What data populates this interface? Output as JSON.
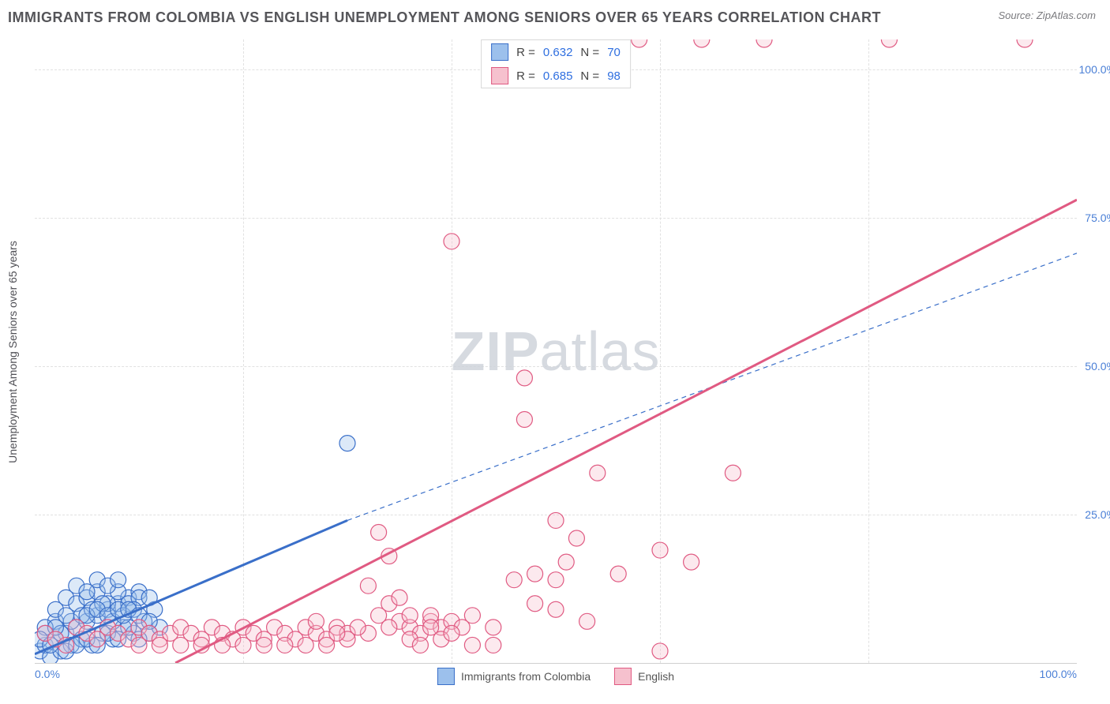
{
  "title": "IMMIGRANTS FROM COLOMBIA VS ENGLISH UNEMPLOYMENT AMONG SENIORS OVER 65 YEARS CORRELATION CHART",
  "source_label": "Source: ZipAtlas.com",
  "y_axis_label": "Unemployment Among Seniors over 65 years",
  "watermark": {
    "bold": "ZIP",
    "rest": "atlas"
  },
  "chart": {
    "type": "scatter",
    "xlim": [
      0,
      100
    ],
    "ylim": [
      0,
      105
    ],
    "x_ticks": [
      {
        "v": 0,
        "label": "0.0%"
      },
      {
        "v": 20,
        "label": ""
      },
      {
        "v": 40,
        "label": ""
      },
      {
        "v": 60,
        "label": ""
      },
      {
        "v": 80,
        "label": ""
      },
      {
        "v": 100,
        "label": "100.0%"
      }
    ],
    "y_ticks": [
      {
        "v": 25,
        "label": "25.0%"
      },
      {
        "v": 50,
        "label": "50.0%"
      },
      {
        "v": 75,
        "label": "75.0%"
      },
      {
        "v": 100,
        "label": "100.0%"
      }
    ],
    "hgrid_vals": [
      25,
      50,
      75,
      100
    ],
    "vgrid_vals": [
      20,
      40,
      60,
      80
    ],
    "grid_color": "#e1e1e1",
    "background_color": "#ffffff",
    "marker_radius": 10,
    "series": [
      {
        "name": "Immigrants from Colombia",
        "fill": "#9cc0ec",
        "stroke": "#3a6fc9",
        "R": "0.632",
        "N": "70",
        "reg_solid": {
          "x1": 0,
          "y1": 1.5,
          "x2": 30,
          "y2": 24
        },
        "reg_dash": {
          "x1": 30,
          "y1": 24,
          "x2": 100,
          "y2": 69
        },
        "points": [
          [
            0.5,
            2
          ],
          [
            1,
            3
          ],
          [
            1.5,
            1
          ],
          [
            2,
            4
          ],
          [
            2.5,
            2
          ],
          [
            3,
            5
          ],
          [
            3.5,
            3
          ],
          [
            4,
            6
          ],
          [
            4.5,
            4
          ],
          [
            5,
            7
          ],
          [
            5.5,
            3
          ],
          [
            6,
            8
          ],
          [
            6.5,
            5
          ],
          [
            7,
            9
          ],
          [
            7.5,
            4
          ],
          [
            8,
            10
          ],
          [
            8.5,
            6
          ],
          [
            9,
            11
          ],
          [
            9.5,
            5
          ],
          [
            10,
            12
          ],
          [
            10.5,
            7
          ],
          [
            11,
            5
          ],
          [
            11.5,
            9
          ],
          [
            12,
            6
          ],
          [
            1,
            5
          ],
          [
            2,
            7
          ],
          [
            3,
            2
          ],
          [
            4,
            3
          ],
          [
            5,
            4
          ],
          [
            6,
            3
          ],
          [
            7,
            5
          ],
          [
            8,
            4
          ],
          [
            9,
            6
          ],
          [
            10,
            4
          ],
          [
            2,
            9
          ],
          [
            3,
            11
          ],
          [
            4,
            10
          ],
          [
            5,
            11
          ],
          [
            6,
            12
          ],
          [
            7,
            10
          ],
          [
            8,
            12
          ],
          [
            9,
            10
          ],
          [
            10,
            11
          ],
          [
            11,
            11
          ],
          [
            1,
            6
          ],
          [
            2.5,
            5
          ],
          [
            3.5,
            7
          ],
          [
            4.5,
            8
          ],
          [
            5.5,
            9
          ],
          [
            6.5,
            10
          ],
          [
            7.5,
            7
          ],
          [
            8.5,
            8
          ],
          [
            9.5,
            9
          ],
          [
            0.5,
            4
          ],
          [
            1.5,
            3
          ],
          [
            4,
            13
          ],
          [
            5,
            12
          ],
          [
            6,
            14
          ],
          [
            7,
            13
          ],
          [
            8,
            14
          ],
          [
            3,
            8
          ],
          [
            2,
            6
          ],
          [
            5,
            8
          ],
          [
            6,
            9
          ],
          [
            7,
            8
          ],
          [
            8,
            9
          ],
          [
            9,
            9
          ],
          [
            10,
            8
          ],
          [
            11,
            7
          ],
          [
            30,
            37
          ]
        ]
      },
      {
        "name": "English",
        "fill": "#f6c1ce",
        "stroke": "#e05a82",
        "R": "0.685",
        "N": "98",
        "reg_solid": {
          "x1": 13.5,
          "y1": 0,
          "x2": 100,
          "y2": 78
        },
        "reg_dash": null,
        "points": [
          [
            1,
            5
          ],
          [
            2,
            4
          ],
          [
            3,
            3
          ],
          [
            4,
            6
          ],
          [
            5,
            5
          ],
          [
            6,
            4
          ],
          [
            7,
            6
          ],
          [
            8,
            5
          ],
          [
            9,
            4
          ],
          [
            10,
            6
          ],
          [
            11,
            5
          ],
          [
            12,
            4
          ],
          [
            13,
            5
          ],
          [
            14,
            6
          ],
          [
            15,
            5
          ],
          [
            16,
            4
          ],
          [
            17,
            6
          ],
          [
            18,
            5
          ],
          [
            19,
            4
          ],
          [
            20,
            6
          ],
          [
            21,
            5
          ],
          [
            22,
            4
          ],
          [
            23,
            6
          ],
          [
            24,
            5
          ],
          [
            25,
            4
          ],
          [
            26,
            6
          ],
          [
            27,
            5
          ],
          [
            28,
            4
          ],
          [
            29,
            6
          ],
          [
            30,
            5
          ],
          [
            10,
            3
          ],
          [
            12,
            3
          ],
          [
            14,
            3
          ],
          [
            16,
            3
          ],
          [
            18,
            3
          ],
          [
            20,
            3
          ],
          [
            22,
            3
          ],
          [
            24,
            3
          ],
          [
            26,
            3
          ],
          [
            28,
            3
          ],
          [
            32,
            13
          ],
          [
            33,
            22
          ],
          [
            34,
            18
          ],
          [
            35,
            7
          ],
          [
            36,
            6
          ],
          [
            37,
            5
          ],
          [
            38,
            7
          ],
          [
            39,
            6
          ],
          [
            40,
            7
          ],
          [
            41,
            6
          ],
          [
            33,
            8
          ],
          [
            34,
            10
          ],
          [
            35,
            11
          ],
          [
            36,
            4
          ],
          [
            37,
            3
          ],
          [
            38,
            8
          ],
          [
            39,
            4
          ],
          [
            40,
            5
          ],
          [
            42,
            8
          ],
          [
            44,
            6
          ],
          [
            40,
            71
          ],
          [
            47,
            48
          ],
          [
            47,
            41
          ],
          [
            50,
            24
          ],
          [
            51,
            17
          ],
          [
            52,
            21
          ],
          [
            56,
            15
          ],
          [
            48,
            10
          ],
          [
            50,
            9
          ],
          [
            53,
            7
          ],
          [
            54,
            32
          ],
          [
            46,
            14
          ],
          [
            48,
            15
          ],
          [
            50,
            14
          ],
          [
            60,
            19
          ],
          [
            63,
            17
          ],
          [
            67,
            32
          ],
          [
            64,
            105
          ],
          [
            50,
            105
          ],
          [
            52,
            105
          ],
          [
            46,
            105
          ],
          [
            48,
            105
          ],
          [
            95,
            105
          ],
          [
            82,
            105
          ],
          [
            70,
            105
          ],
          [
            56,
            105
          ],
          [
            58,
            105
          ],
          [
            60,
            2
          ],
          [
            42,
            3
          ],
          [
            44,
            3
          ],
          [
            36,
            8
          ],
          [
            38,
            6
          ],
          [
            34,
            6
          ],
          [
            32,
            5
          ],
          [
            30,
            4
          ],
          [
            31,
            6
          ],
          [
            29,
            5
          ],
          [
            27,
            7
          ]
        ]
      }
    ]
  },
  "legend_bottom": [
    {
      "label": "Immigrants from Colombia",
      "fill": "#9cc0ec",
      "stroke": "#3a6fc9"
    },
    {
      "label": "English",
      "fill": "#f6c1ce",
      "stroke": "#e05a82"
    }
  ]
}
